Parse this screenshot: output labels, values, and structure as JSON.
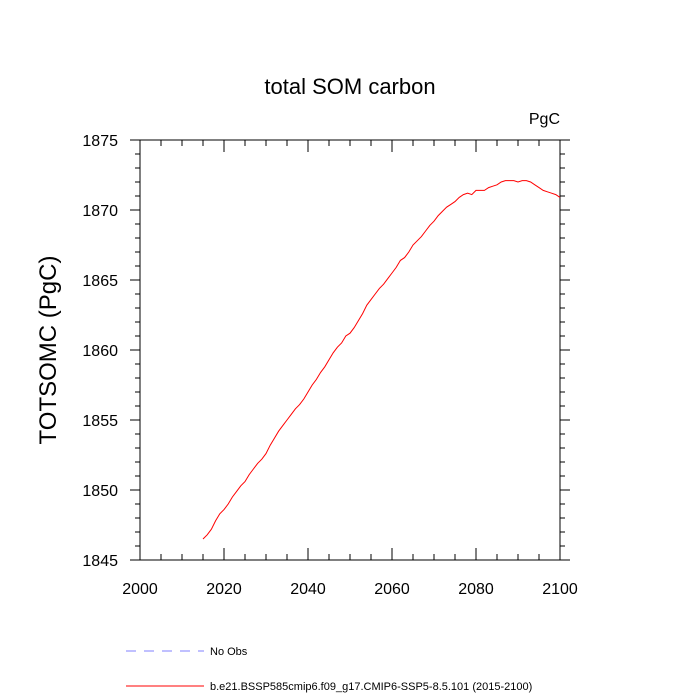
{
  "chart_data": {
    "type": "line",
    "title": "total SOM carbon",
    "units_label": "PgC",
    "ylabel": "TOTSOMC  (PgC)",
    "xlabel": "",
    "xlim": [
      2000,
      2100
    ],
    "ylim": [
      1845,
      1875
    ],
    "x_ticks": [
      "2000",
      "2020",
      "2040",
      "2060",
      "2080",
      "2100"
    ],
    "y_ticks": [
      "1845",
      "1850",
      "1855",
      "1860",
      "1865",
      "1870",
      "1875"
    ],
    "grid": false,
    "legend_position": "bottom",
    "series": [
      {
        "name": "No Obs",
        "color": "#8080ff",
        "dash": "dashed",
        "x": [],
        "y": []
      },
      {
        "name": "b.e21.BSSP585cmip6.f09_g17.CMIP6-SSP5-8.5.101 (2015-2100)",
        "color": "#ff0000",
        "dash": "solid",
        "x": [
          2015,
          2016,
          2017,
          2018,
          2019,
          2020,
          2021,
          2022,
          2023,
          2024,
          2025,
          2026,
          2027,
          2028,
          2029,
          2030,
          2031,
          2032,
          2033,
          2034,
          2035,
          2036,
          2037,
          2038,
          2039,
          2040,
          2041,
          2042,
          2043,
          2044,
          2045,
          2046,
          2047,
          2048,
          2049,
          2050,
          2051,
          2052,
          2053,
          2054,
          2055,
          2056,
          2057,
          2058,
          2059,
          2060,
          2061,
          2062,
          2063,
          2064,
          2065,
          2066,
          2067,
          2068,
          2069,
          2070,
          2071,
          2072,
          2073,
          2074,
          2075,
          2076,
          2077,
          2078,
          2079,
          2080,
          2081,
          2082,
          2083,
          2084,
          2085,
          2086,
          2087,
          2088,
          2089,
          2090,
          2091,
          2092,
          2093,
          2094,
          2095,
          2096,
          2097,
          2098,
          2099,
          2100
        ],
        "y": [
          1846.5,
          1846.8,
          1847.2,
          1847.8,
          1848.3,
          1848.6,
          1849.0,
          1849.5,
          1849.9,
          1850.3,
          1850.6,
          1851.1,
          1851.5,
          1851.9,
          1852.2,
          1852.6,
          1853.2,
          1853.7,
          1854.2,
          1854.6,
          1855.0,
          1855.4,
          1855.8,
          1856.1,
          1856.5,
          1857.0,
          1857.5,
          1857.9,
          1858.4,
          1858.8,
          1859.3,
          1859.8,
          1860.2,
          1860.5,
          1861.0,
          1861.2,
          1861.6,
          1862.1,
          1862.6,
          1863.2,
          1863.6,
          1864.0,
          1864.4,
          1864.7,
          1865.1,
          1865.5,
          1865.9,
          1866.4,
          1866.6,
          1867.0,
          1867.5,
          1867.8,
          1868.1,
          1868.5,
          1868.9,
          1869.2,
          1869.6,
          1869.9,
          1870.2,
          1870.4,
          1870.6,
          1870.9,
          1871.1,
          1871.2,
          1871.1,
          1871.4,
          1871.4,
          1871.4,
          1871.6,
          1871.7,
          1871.8,
          1872.0,
          1872.1,
          1872.1,
          1872.1,
          1872.0,
          1872.1,
          1872.1,
          1872.0,
          1871.8,
          1871.6,
          1871.4,
          1871.3,
          1871.2,
          1871.1,
          1870.9
        ]
      }
    ]
  }
}
